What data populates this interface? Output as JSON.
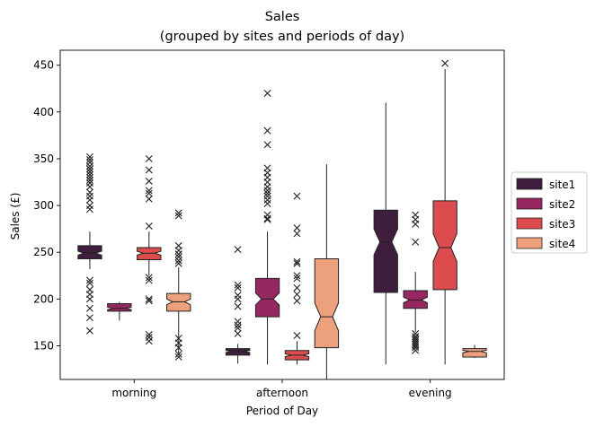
{
  "chart_data": {
    "type": "boxplot",
    "title": "Sales",
    "subtitle": "(grouped by sites and periods of day)",
    "xlabel": "Period of Day",
    "ylabel": "Sales (£)",
    "categories": [
      "morning",
      "afternoon",
      "evening"
    ],
    "ylim": [
      114,
      466
    ],
    "yticks": [
      150,
      200,
      250,
      300,
      350,
      400,
      450
    ],
    "notched": true,
    "flier_marker": "x",
    "legend": {
      "position": "center-right"
    },
    "series": [
      {
        "name": "site1",
        "color": "#3e1d3d",
        "boxes": [
          {
            "category": "morning",
            "whislo": 232,
            "q1": 243,
            "med": 249,
            "q3": 257,
            "whishi": 272,
            "fliers": [
              352,
              349,
              346,
              342,
              339,
              336,
              333,
              330,
              327,
              324,
              320,
              314,
              310,
              306,
              300,
              296,
              220,
              217,
              210,
              205,
              200,
              190,
              180,
              166
            ]
          },
          {
            "category": "afternoon",
            "whislo": 131,
            "q1": 140,
            "med": 144,
            "q3": 147,
            "whishi": 152,
            "fliers": [
              253,
              215,
              212,
              204,
              200,
              192,
              176,
              172,
              169,
              163
            ]
          },
          {
            "category": "evening",
            "whislo": 130,
            "q1": 207,
            "med": 261,
            "q3": 295,
            "whishi": 410,
            "fliers": []
          }
        ]
      },
      {
        "name": "site2",
        "color": "#962760",
        "boxes": [
          {
            "category": "morning",
            "whislo": 177,
            "q1": 187,
            "med": 190,
            "q3": 195,
            "whishi": 197,
            "fliers": []
          },
          {
            "category": "afternoon",
            "whislo": 130,
            "q1": 181,
            "med": 200,
            "q3": 222,
            "whishi": 272,
            "fliers": [
              420,
              380,
              365,
              340,
              335,
              330,
              325,
              320,
              316,
              313,
              310,
              306,
              302,
              290,
              286,
              285
            ]
          },
          {
            "category": "evening",
            "whislo": 165,
            "q1": 190,
            "med": 199,
            "q3": 209,
            "whishi": 229,
            "fliers": [
              290,
              285,
              280,
              261,
              163,
              160,
              158,
              156,
              154,
              152,
              150,
              148,
              145
            ]
          }
        ]
      },
      {
        "name": "site3",
        "color": "#dc4b4d",
        "boxes": [
          {
            "category": "morning",
            "whislo": 225,
            "q1": 242,
            "med": 249,
            "q3": 255,
            "whishi": 272,
            "fliers": [
              350,
              338,
              326,
              316,
              313,
              307,
              278,
              223,
              220,
              200,
              198,
              162,
              159,
              155
            ]
          },
          {
            "category": "afternoon",
            "whislo": 130,
            "q1": 135,
            "med": 140,
            "q3": 145,
            "whishi": 155,
            "fliers": [
              310,
              276,
              270,
              240,
              238,
              225,
              222,
              212,
              205,
              198,
              161
            ]
          },
          {
            "category": "evening",
            "whislo": 130,
            "q1": 210,
            "med": 255,
            "q3": 305,
            "whishi": 446,
            "fliers": [
              452
            ]
          }
        ]
      },
      {
        "name": "site4",
        "color": "#eda07c",
        "boxes": [
          {
            "category": "morning",
            "whislo": 141,
            "q1": 187,
            "med": 197,
            "q3": 206,
            "whishi": 234,
            "fliers": [
              292,
              289,
              257,
              252,
              248,
              245,
              241,
              238,
              158,
              153,
              148,
              141,
              138
            ]
          },
          {
            "category": "afternoon",
            "whislo": 110,
            "q1": 148,
            "med": 181,
            "q3": 243,
            "whishi": 344,
            "fliers": []
          },
          {
            "category": "evening",
            "whislo": 137,
            "q1": 138,
            "med": 144,
            "q3": 147,
            "whishi": 151,
            "fliers": []
          }
        ]
      }
    ]
  }
}
